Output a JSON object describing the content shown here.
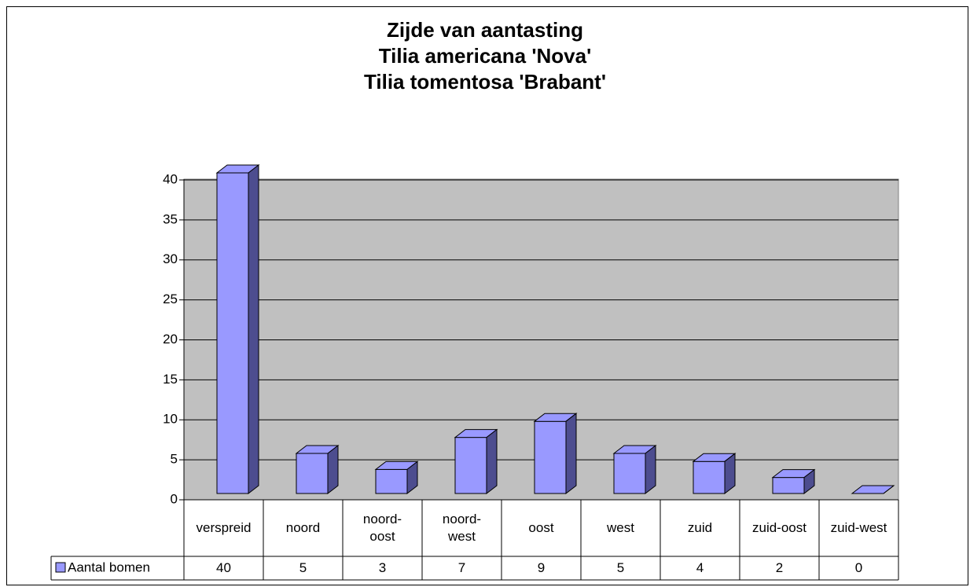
{
  "chart_data": {
    "type": "bar",
    "title": "Zijde van aantasting\nTilia americana 'Nova'\nTilia tomentosa 'Brabant'",
    "categories": [
      "verspreid",
      "noord",
      "noord-\noost",
      "noord-\nwest",
      "oost",
      "west",
      "zuid",
      "zuid-oost",
      "zuid-west"
    ],
    "series": [
      {
        "name": "Aantal bomen",
        "color": "#9999ff",
        "values": [
          40,
          5,
          3,
          7,
          9,
          5,
          4,
          2,
          0
        ]
      }
    ],
    "ylim": [
      0,
      40
    ],
    "yticks": [
      0,
      5,
      10,
      15,
      20,
      25,
      30,
      35,
      40
    ],
    "grid": true
  }
}
